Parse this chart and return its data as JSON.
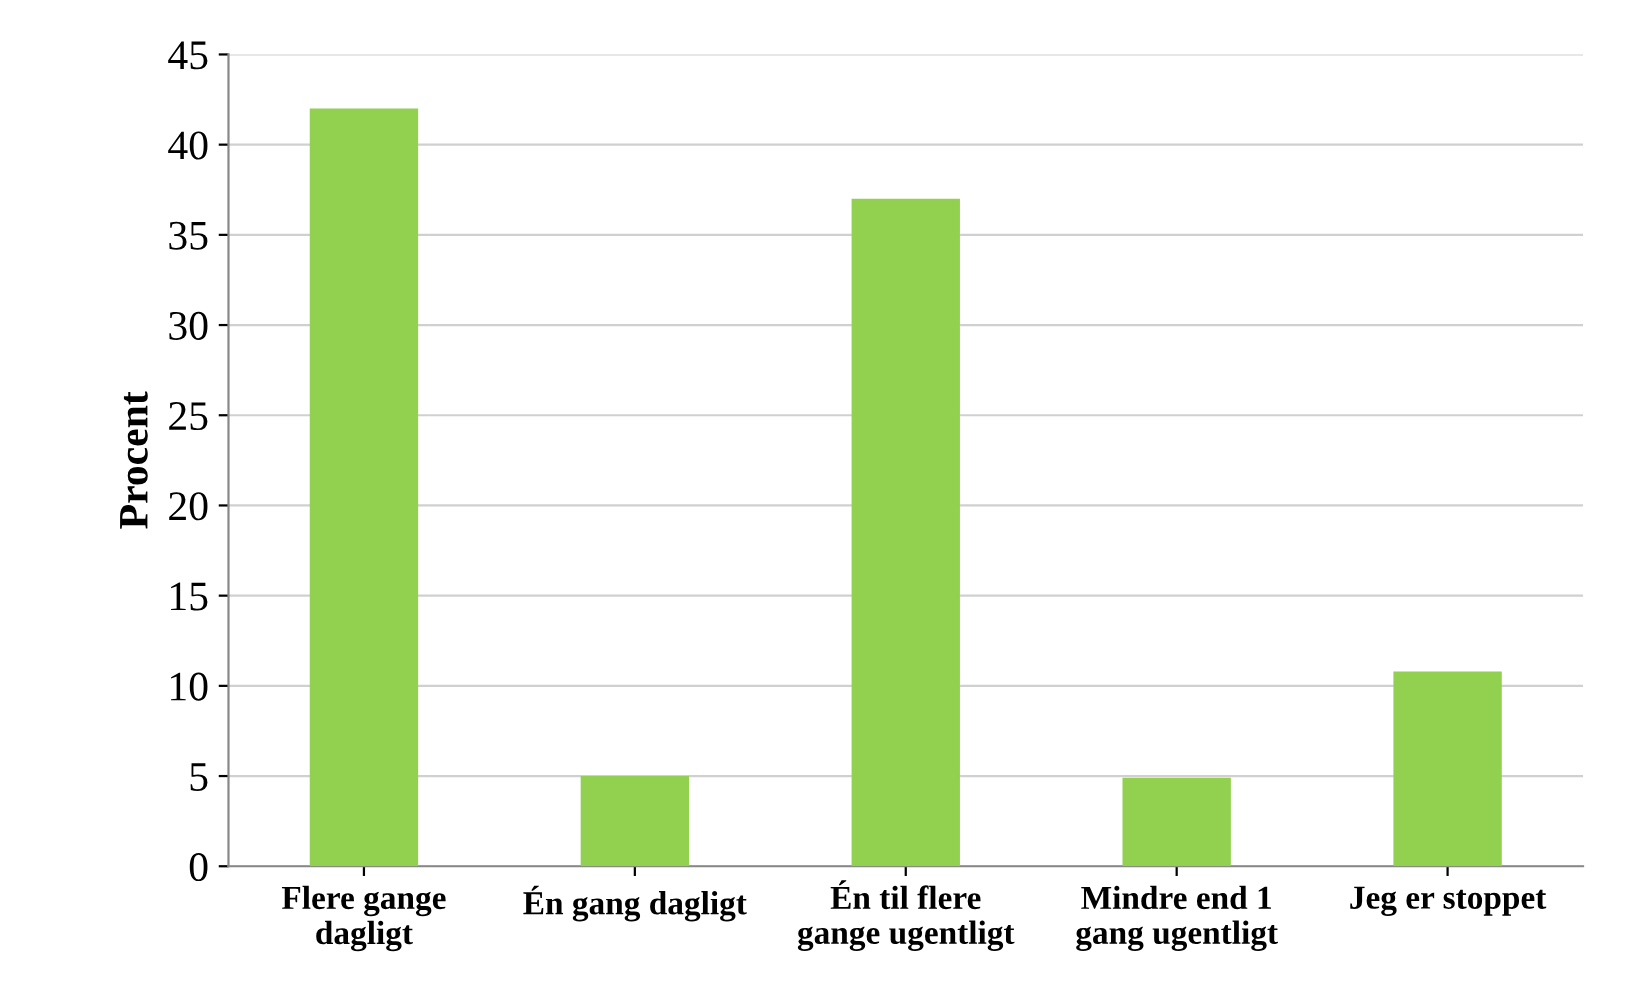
{
  "chart_data": {
    "type": "bar",
    "ylabel": "Procent",
    "categories": [
      "Flere gange\ndagligt",
      "Én gang dagligt",
      "Én til flere\ngange ugentligt",
      "Mindre end 1\ngang ugentligt",
      "Jeg er stoppet"
    ],
    "values": [
      42,
      5,
      37,
      4.9,
      10.8
    ],
    "color": "#92d050",
    "ylim": [
      0,
      45
    ],
    "yticks": [
      0,
      5,
      10,
      15,
      20,
      25,
      30,
      35,
      40,
      45
    ],
    "grid": "y"
  }
}
